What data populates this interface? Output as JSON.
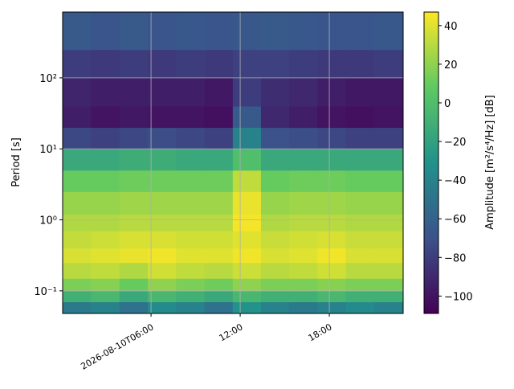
{
  "chart_data": {
    "type": "heatmap",
    "ylabel": "Period [s]",
    "colorbar_label": "Amplitude [m²/s⁴/Hz] [dB]",
    "x": [
      0.05,
      1.96,
      3.87,
      5.78,
      7.69,
      9.6,
      11.5,
      13.4,
      15.3,
      17.2,
      19.1,
      21.0,
      22.97
    ],
    "y": [
      0.048,
      0.07,
      0.1,
      0.15,
      0.25,
      0.4,
      0.7,
      1.2,
      2.5,
      5,
      10,
      20,
      40,
      100,
      250,
      845
    ],
    "z": [
      [
        -45,
        -40,
        -50,
        -35,
        -40,
        -50,
        -30,
        -40,
        -45,
        -40,
        -35,
        -40
      ],
      [
        -10,
        -5,
        -15,
        -5,
        -10,
        -15,
        -5,
        -10,
        -10,
        -5,
        -10,
        -10
      ],
      [
        15,
        18,
        10,
        20,
        15,
        12,
        20,
        15,
        15,
        18,
        15,
        15
      ],
      [
        30,
        32,
        28,
        36,
        32,
        30,
        35,
        30,
        32,
        36,
        30,
        30
      ],
      [
        38,
        40,
        42,
        44,
        40,
        40,
        44,
        38,
        40,
        44,
        38,
        38
      ],
      [
        33,
        35,
        38,
        38,
        36,
        36,
        40,
        34,
        36,
        38,
        34,
        34
      ],
      [
        28,
        28,
        30,
        30,
        30,
        30,
        45,
        28,
        30,
        30,
        28,
        28
      ],
      [
        22,
        22,
        24,
        24,
        24,
        24,
        42,
        22,
        24,
        24,
        22,
        22
      ],
      [
        10,
        10,
        12,
        12,
        12,
        12,
        32,
        10,
        12,
        12,
        10,
        10
      ],
      [
        -15,
        -15,
        -12,
        -12,
        -15,
        -15,
        0,
        -15,
        -15,
        -15,
        -15,
        -15
      ],
      [
        -75,
        -78,
        -75,
        -72,
        -75,
        -78,
        -40,
        -70,
        -72,
        -75,
        -78,
        -78
      ],
      [
        -95,
        -100,
        -98,
        -100,
        -100,
        -102,
        -65,
        -90,
        -95,
        -100,
        -102,
        -100
      ],
      [
        -92,
        -95,
        -95,
        -95,
        -95,
        -98,
        -80,
        -88,
        -90,
        -95,
        -98,
        -98
      ],
      [
        -80,
        -82,
        -80,
        -82,
        -80,
        -82,
        -78,
        -78,
        -80,
        -82,
        -82,
        -80
      ],
      [
        -65,
        -68,
        -65,
        -68,
        -66,
        -68,
        -66,
        -65,
        -66,
        -68,
        -68,
        -66
      ]
    ],
    "xlim": [
      0.05,
      22.97
    ],
    "xticks": [
      {
        "value": 6,
        "label": "2026-08-10T06:00"
      },
      {
        "value": 12,
        "label": "12:00"
      },
      {
        "value": 18,
        "label": "18:00"
      }
    ],
    "ylim": [
      0.048,
      845
    ],
    "yscale": "log",
    "yticks": [
      {
        "value": 0.1,
        "label": "10⁻¹"
      },
      {
        "value": 1,
        "label": "10⁰"
      },
      {
        "value": 10,
        "label": "10¹"
      },
      {
        "value": 100,
        "label": "10²"
      }
    ],
    "clim": [
      -109,
      47
    ],
    "cticks": [
      {
        "value": -100,
        "label": "−100"
      },
      {
        "value": -80,
        "label": "−80"
      },
      {
        "value": -60,
        "label": "−60"
      },
      {
        "value": -40,
        "label": "−40"
      },
      {
        "value": -20,
        "label": "−20"
      },
      0,
      20,
      40
    ],
    "colormap": "viridis",
    "grid": true
  }
}
